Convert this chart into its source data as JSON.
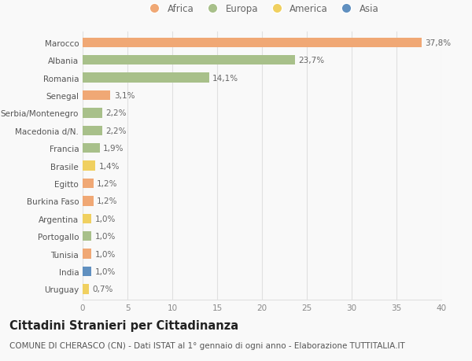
{
  "categories": [
    "Marocco",
    "Albania",
    "Romania",
    "Senegal",
    "Serbia/Montenegro",
    "Macedonia d/N.",
    "Francia",
    "Brasile",
    "Egitto",
    "Burkina Faso",
    "Argentina",
    "Portogallo",
    "Tunisia",
    "India",
    "Uruguay"
  ],
  "values": [
    37.8,
    23.7,
    14.1,
    3.1,
    2.2,
    2.2,
    1.9,
    1.4,
    1.2,
    1.2,
    1.0,
    1.0,
    1.0,
    1.0,
    0.7
  ],
  "labels": [
    "37,8%",
    "23,7%",
    "14,1%",
    "3,1%",
    "2,2%",
    "2,2%",
    "1,9%",
    "1,4%",
    "1,2%",
    "1,2%",
    "1,0%",
    "1,0%",
    "1,0%",
    "1,0%",
    "0,7%"
  ],
  "continents": [
    "Africa",
    "Europa",
    "Europa",
    "Africa",
    "Europa",
    "Europa",
    "Europa",
    "America",
    "Africa",
    "Africa",
    "America",
    "Europa",
    "Africa",
    "Asia",
    "America"
  ],
  "continent_colors": {
    "Africa": "#F0A875",
    "Europa": "#A8C08A",
    "America": "#F0D060",
    "Asia": "#6090C0"
  },
  "legend_order": [
    "Africa",
    "Europa",
    "America",
    "Asia"
  ],
  "xlim": [
    0,
    40
  ],
  "xticks": [
    0,
    5,
    10,
    15,
    20,
    25,
    30,
    35,
    40
  ],
  "title": "Cittadini Stranieri per Cittadinanza",
  "subtitle": "COMUNE DI CHERASCO (CN) - Dati ISTAT al 1° gennaio di ogni anno - Elaborazione TUTTITALIA.IT",
  "background_color": "#f9f9f9",
  "grid_color": "#e0e0e0",
  "bar_height": 0.55,
  "label_fontsize": 7.5,
  "tick_fontsize": 7.5,
  "title_fontsize": 10.5,
  "subtitle_fontsize": 7.5
}
